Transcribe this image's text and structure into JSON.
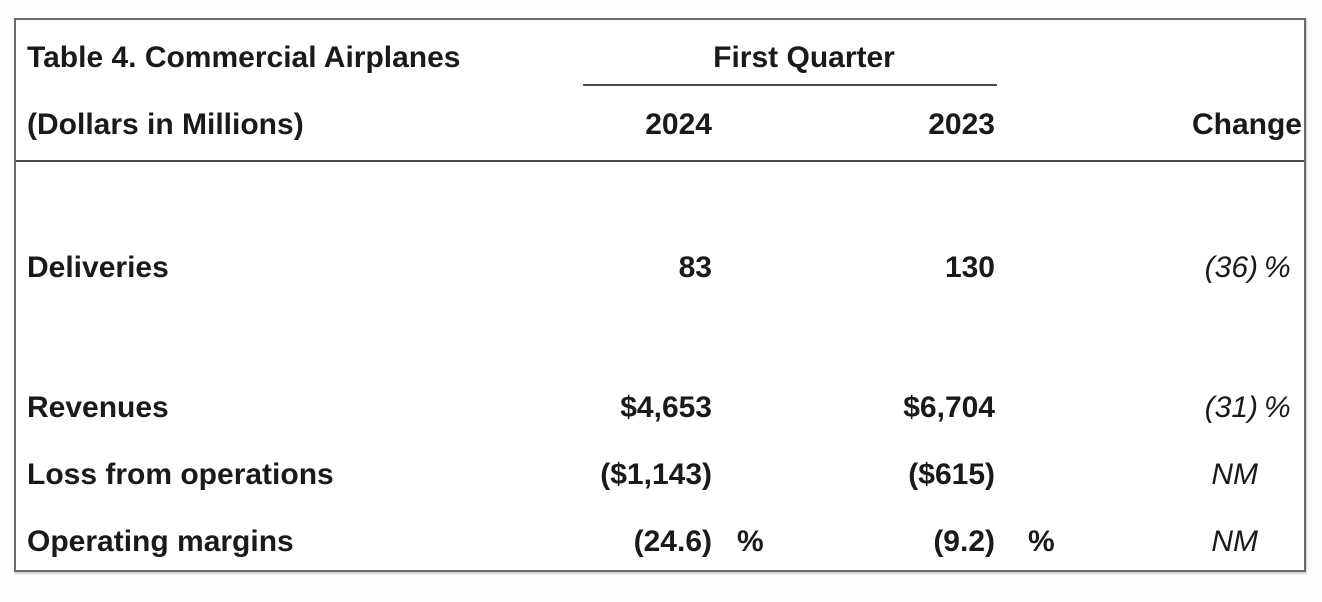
{
  "table": {
    "title": "Table 4. Commercial Airplanes",
    "subtitle": "(Dollars in Millions)",
    "period_header": "First Quarter",
    "columns": {
      "y2024": "2024",
      "y2023": "2023",
      "change": "Change"
    },
    "rows": [
      {
        "label": "Deliveries",
        "v2024": "83",
        "p2024": "",
        "v2023": "130",
        "p2023": "",
        "chg": "(36)",
        "chg_pct": "%"
      },
      {
        "label": "Revenues",
        "v2024": "$4,653",
        "p2024": "",
        "v2023": "$6,704",
        "p2023": "",
        "chg": "(31)",
        "chg_pct": "%"
      },
      {
        "label": "Loss from operations",
        "v2024": "($1,143)",
        "p2024": "",
        "v2023": "($615)",
        "p2023": "",
        "chg": "NM",
        "chg_pct": ""
      },
      {
        "label": "Operating margins",
        "v2024": "(24.6)",
        "p2024": "%",
        "v2023": "(9.2)",
        "p2023": "%",
        "chg": "NM",
        "chg_pct": ""
      }
    ],
    "colors": {
      "text": "#1a1a1a",
      "border": "#6a6a6a",
      "rule": "#4a4a4a",
      "background": "#ffffff"
    }
  }
}
